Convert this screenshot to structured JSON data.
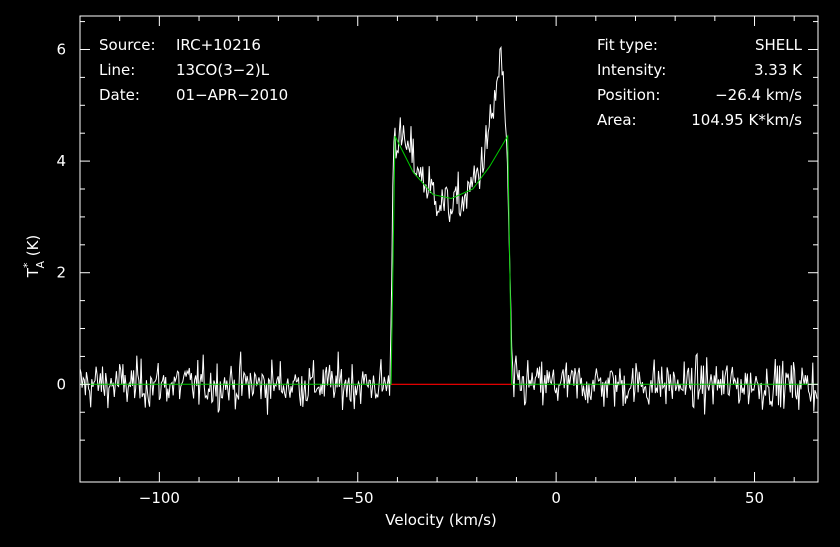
{
  "chart_data": {
    "type": "line",
    "xlabel": "Velocity (km/s)",
    "ylabel": {
      "main": "T",
      "sup": "*",
      "sub": "A",
      "unit": " (K)"
    },
    "xlim": [
      -120,
      66
    ],
    "ylim": [
      -1.75,
      6.6
    ],
    "xticks": [
      -100,
      -50,
      0,
      50
    ],
    "xtick_labels": [
      "−100",
      "−50",
      "0",
      "50"
    ],
    "yticks": [
      0,
      2,
      4,
      6
    ],
    "ytick_labels": [
      "0",
      "2",
      "4",
      "6"
    ],
    "grid": false,
    "info_left": [
      {
        "key": "Source:",
        "value": "IRC+10216"
      },
      {
        "key": "Line:",
        "value": "13CO(3−2)L"
      },
      {
        "key": "Date:",
        "value": "01−APR−2010"
      }
    ],
    "info_right": [
      {
        "key": "Fit type:",
        "value": "SHELL"
      },
      {
        "key": "Intensity:",
        "value": "3.33 K"
      },
      {
        "key": "Position:",
        "value": "−26.4 km/s"
      },
      {
        "key": "Area:",
        "value": "104.95 K*km/s"
      }
    ],
    "series": [
      {
        "role": "spectrum",
        "color": "#ffffff",
        "line_start": -120,
        "line_end": 66,
        "line_center": -26.4,
        "half_width": 14.2,
        "noise_rms": 0.3,
        "anchors": [
          {
            "x": -41,
            "y": 4.5
          },
          {
            "x": -37,
            "y": 4.2
          },
          {
            "x": -33,
            "y": 3.6
          },
          {
            "x": -28,
            "y": 3.2
          },
          {
            "x": -23,
            "y": 3.3
          },
          {
            "x": -19,
            "y": 3.9
          },
          {
            "x": -16,
            "y": 4.8
          },
          {
            "x": -14,
            "y": 5.9
          },
          {
            "x": -12.5,
            "y": 4.5
          }
        ]
      },
      {
        "role": "fit",
        "color": "#00cc00",
        "points": [
          {
            "x": -120,
            "y": 0
          },
          {
            "x": -41.6,
            "y": 0
          },
          {
            "x": -40.6,
            "y": 4.45
          },
          {
            "x": -36,
            "y": 3.8
          },
          {
            "x": -31,
            "y": 3.4
          },
          {
            "x": -26.4,
            "y": 3.33
          },
          {
            "x": -21,
            "y": 3.5
          },
          {
            "x": -16.8,
            "y": 3.9
          },
          {
            "x": -12.2,
            "y": 4.45
          },
          {
            "x": -11.2,
            "y": 0
          },
          {
            "x": 66,
            "y": 0
          }
        ]
      },
      {
        "role": "baseline-window",
        "color": "#ff0000",
        "points": [
          {
            "x": -41.6,
            "y": 0
          },
          {
            "x": -11.2,
            "y": 0
          }
        ]
      }
    ]
  }
}
